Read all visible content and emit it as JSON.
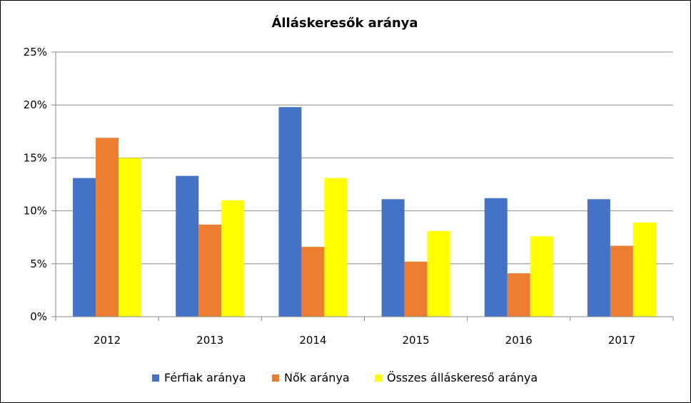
{
  "chart_data": {
    "type": "bar",
    "title": "Álláskeresők aránya",
    "categories": [
      "2012",
      "2013",
      "2014",
      "2015",
      "2016",
      "2017"
    ],
    "series": [
      {
        "name": "Férfiak aránya",
        "color": "#4472C4",
        "values": [
          13.1,
          13.3,
          19.8,
          11.1,
          11.2,
          11.1
        ]
      },
      {
        "name": "Nők aránya",
        "color": "#ED7D31",
        "values": [
          16.9,
          8.7,
          6.6,
          5.2,
          4.1,
          6.7
        ]
      },
      {
        "name": "Összes álláskereső aránya",
        "color": "#FFFF00",
        "values": [
          15.0,
          11.0,
          13.1,
          8.1,
          7.6,
          8.9
        ]
      }
    ],
    "yticks": [
      "0%",
      "5%",
      "10%",
      "15%",
      "20%",
      "25%"
    ],
    "ylim": [
      0,
      25
    ],
    "grid": true,
    "legend_position": "bottom"
  }
}
